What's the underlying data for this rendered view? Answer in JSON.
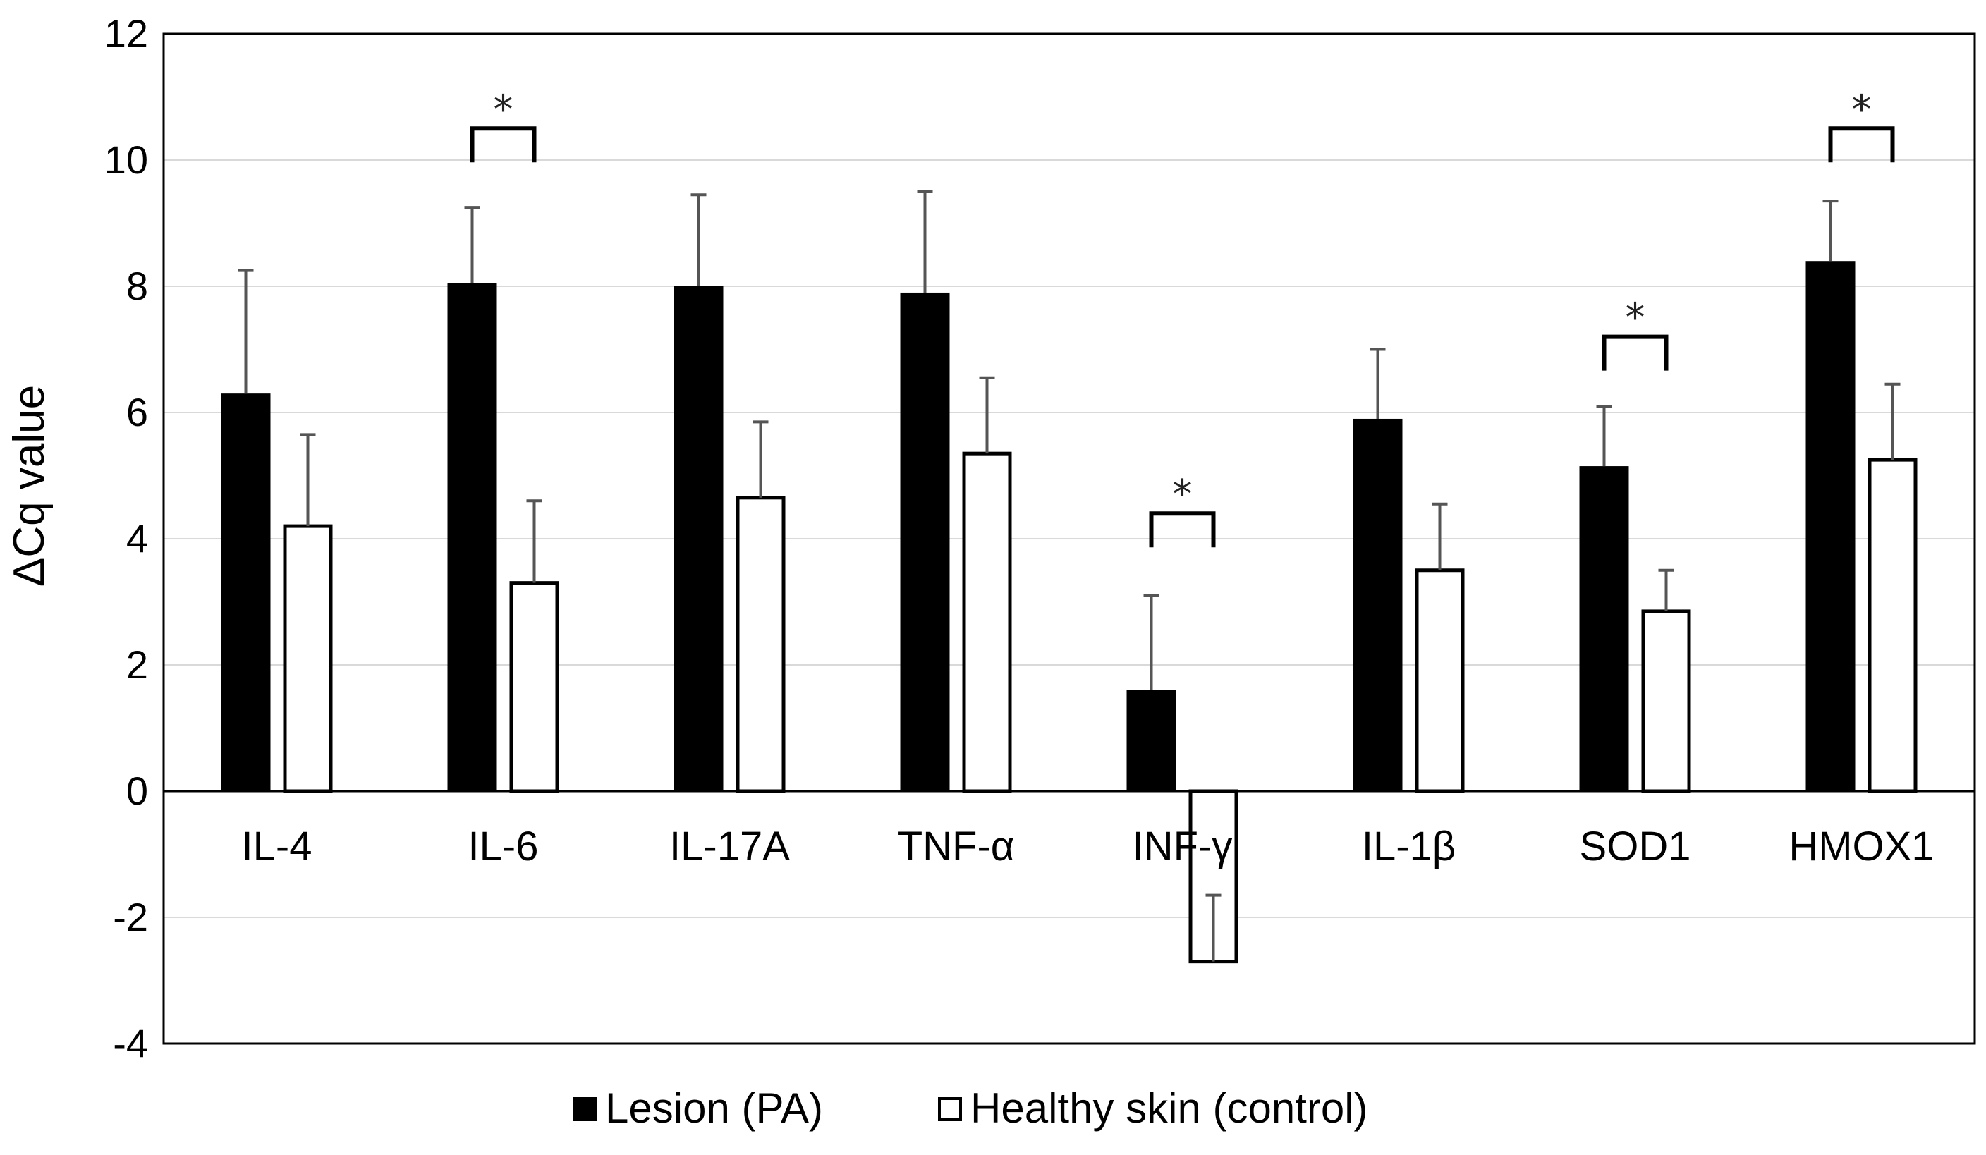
{
  "chart_data": {
    "type": "bar",
    "title": "",
    "xlabel": "",
    "ylabel": "ΔCq value",
    "ylim": [
      -4,
      12
    ],
    "yticks": [
      -4,
      -2,
      0,
      2,
      4,
      6,
      8,
      10,
      12
    ],
    "grid": true,
    "legend_position": "bottom",
    "categories": [
      "IL-4",
      "IL-6",
      "IL-17A",
      "TNF-α",
      "INF-γ",
      "IL-1β",
      "SOD1",
      "HMOX1"
    ],
    "series": [
      {
        "name": "Lesion (PA)",
        "color": "#000000",
        "fill": "solid",
        "values": [
          6.3,
          8.05,
          8.0,
          7.9,
          1.6,
          5.9,
          5.15,
          8.4
        ],
        "errors": [
          1.95,
          1.2,
          1.45,
          1.6,
          1.5,
          1.1,
          0.95,
          0.95
        ]
      },
      {
        "name": "Healthy skin (control)",
        "color": "#000000",
        "fill": "hollow",
        "values": [
          4.2,
          3.3,
          4.65,
          5.35,
          -2.7,
          3.5,
          2.85,
          5.25
        ],
        "errors": [
          1.45,
          1.3,
          1.2,
          1.2,
          1.05,
          1.05,
          0.65,
          1.2
        ]
      }
    ],
    "significance": [
      {
        "category": "IL-6",
        "label": "*",
        "bracket_y": 10.5
      },
      {
        "category": "INF-γ",
        "label": "*",
        "bracket_y": 4.4
      },
      {
        "category": "SOD1",
        "label": "*",
        "bracket_y": 7.2
      },
      {
        "category": "HMOX1",
        "label": "*",
        "bracket_y": 10.5
      }
    ]
  }
}
